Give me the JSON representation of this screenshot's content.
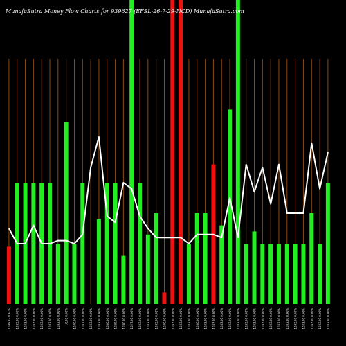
{
  "title": "MunafaSutra  Money Flow  Charts for 939627          (EFSL-26-7-29-NCD) MunafaSutra.com",
  "chart_data": {
    "type": "bar",
    "title": "MunafaSutra  Money Flow  Charts for 939627          (EFSL-26-7-29-NCD) MunafaSutra.com",
    "xlabel": "",
    "ylabel": "",
    "grid": false,
    "legend": "none",
    "colors": {
      "background": "#000000",
      "grid_line": "#8b4a12",
      "up": "#22ee22",
      "down": "#ee1111",
      "line": "#ffffff",
      "text": "#ffffff"
    },
    "categories": [
      "1039.97 0.67%",
      "1033.00 0.00%",
      "1033.00 0.00%",
      "1033.00 0.00%",
      "1033.00 0.00%",
      "1033.00 0.00%",
      "1033.00 0.00%",
      "10.00 0.00%",
      "1030.00 0.00%",
      "1031.00 0.00%",
      "1033.00 0.00%",
      "1033.00 0.00%",
      "1030.00 0.00%",
      "1029.00 0.00%",
      "1030.00 0.00%",
      "1027.00 0.00%",
      "1033.00 0.00%",
      "1033.00 0.00%",
      "1033.00 0.00%",
      "1030.00 0.00%",
      "1033.00 0.00%",
      "1033.00 0.00%",
      "1033.00 0.00%",
      "1030.00 0.00%",
      "1033.00 0.00%",
      "1033.00 0.00%",
      "1033.00 0.00%",
      "1033.00 0.00%",
      "1033.00 0.00%",
      "1033.00 0.00%",
      "1033.00 0.00%",
      "1033.00 0.00%",
      "1033.00 0.00%",
      "1033.00 0.00%",
      "1033.00 0.00%",
      "1033.00 0.00%",
      "1033.00 0.00%",
      "1033.00 0.00%",
      "1033.00 0.00%",
      "1033.00 0.00%"
    ],
    "values": [
      19,
      40,
      40,
      40,
      40,
      40,
      20,
      60,
      20,
      40,
      0,
      28,
      40,
      40,
      16,
      100,
      40,
      23,
      30,
      4,
      100,
      100,
      20,
      30,
      30,
      46,
      26,
      64,
      100,
      20,
      24,
      20,
      20,
      20,
      20,
      20,
      20,
      30,
      20,
      40
    ],
    "bar_colors": [
      "red",
      "green",
      "green",
      "green",
      "green",
      "green",
      "green",
      "green",
      "green",
      "green",
      "red",
      "green",
      "green",
      "green",
      "green",
      "green",
      "green",
      "green",
      "green",
      "red",
      "red",
      "red",
      "green",
      "green",
      "green",
      "red",
      "green",
      "green",
      "green",
      "green",
      "green",
      "green",
      "green",
      "green",
      "green",
      "green",
      "green",
      "green",
      "green",
      "green"
    ],
    "line_values": [
      25,
      20,
      20,
      26,
      20,
      20,
      21,
      21,
      20,
      23,
      45,
      55,
      29,
      27,
      40,
      38,
      29,
      25,
      22,
      22,
      22,
      22,
      20,
      23,
      23,
      23,
      22,
      35,
      22,
      46,
      37,
      45,
      33,
      46,
      30,
      30,
      30,
      53,
      38,
      50
    ],
    "ylim": [
      0,
      100
    ]
  }
}
